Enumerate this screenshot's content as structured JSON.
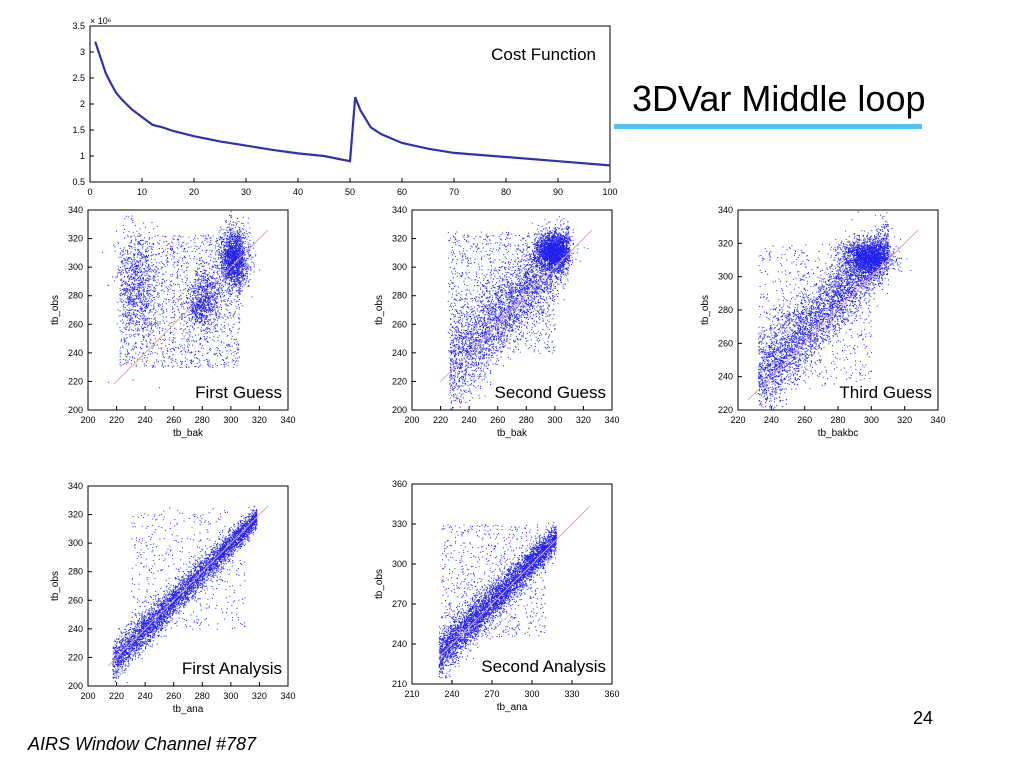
{
  "slide": {
    "title": "3DVar Middle loop",
    "footer": "AIRS Window Channel #787",
    "page_number": "24",
    "accent_color": "#4fc3f7"
  },
  "chart_data": [
    {
      "type": "line",
      "title": "Cost Function",
      "scale_label": "× 10⁶",
      "xlabel": "",
      "ylabel": "",
      "xlim": [
        0,
        100
      ],
      "ylim": [
        0.5,
        3.5
      ],
      "xticks": [
        0,
        10,
        20,
        30,
        40,
        50,
        60,
        70,
        80,
        90,
        100
      ],
      "yticks": [
        0.5,
        1,
        1.5,
        2,
        2.5,
        3,
        3.5
      ],
      "color": "#3030b0",
      "x": [
        1,
        2,
        3,
        4,
        5,
        6,
        7,
        8,
        10,
        12,
        14,
        16,
        20,
        25,
        30,
        35,
        40,
        45,
        50,
        51,
        52,
        54,
        56,
        60,
        65,
        70,
        80,
        90,
        100
      ],
      "y": [
        3.2,
        2.9,
        2.6,
        2.4,
        2.22,
        2.1,
        2.0,
        1.9,
        1.75,
        1.6,
        1.55,
        1.48,
        1.38,
        1.28,
        1.2,
        1.12,
        1.05,
        1.0,
        0.9,
        2.13,
        1.88,
        1.55,
        1.42,
        1.25,
        1.14,
        1.06,
        0.98,
        0.9,
        0.82
      ]
    },
    {
      "type": "scatter",
      "title": "First Guess",
      "xlabel": "tb_bak",
      "ylabel": "tb_obs",
      "xlim": [
        200,
        340
      ],
      "ylim": [
        200,
        340
      ],
      "xticks": [
        200,
        220,
        240,
        260,
        280,
        300,
        320,
        340
      ],
      "yticks": [
        200,
        220,
        240,
        260,
        280,
        300,
        320,
        340
      ],
      "point_color": "#2020ee",
      "diag_color": "#f4a0a0",
      "diag": [
        [
          218,
          218
        ],
        [
          326,
          326
        ]
      ],
      "clusters": [
        {
          "n": 1500,
          "type": "box",
          "x": [
            222,
            306
          ],
          "y": [
            230,
            323
          ]
        },
        {
          "n": 1700,
          "type": "gauss",
          "cx": 302,
          "cy": 306,
          "sx": 5,
          "sy": 11
        },
        {
          "n": 800,
          "type": "gauss",
          "cx": 234,
          "cy": 286,
          "sx": 7,
          "sy": 18
        },
        {
          "n": 400,
          "type": "gauss",
          "cx": 283,
          "cy": 282,
          "sx": 5,
          "sy": 10
        },
        {
          "n": 400,
          "type": "gauss",
          "cx": 277,
          "cy": 272,
          "sx": 5,
          "sy": 7
        }
      ]
    },
    {
      "type": "scatter",
      "title": "Second Guess",
      "xlabel": "tb_bak",
      "ylabel": "tb_obs",
      "xlim": [
        200,
        340
      ],
      "ylim": [
        200,
        340
      ],
      "xticks": [
        200,
        220,
        240,
        260,
        280,
        300,
        320,
        340
      ],
      "yticks": [
        200,
        220,
        240,
        260,
        280,
        300,
        320,
        340
      ],
      "point_color": "#2020ee",
      "diag_color": "#f4a0a0",
      "diag": [
        [
          220,
          220
        ],
        [
          326,
          326
        ]
      ],
      "clusters": [
        {
          "n": 3200,
          "type": "diag",
          "lo": 226,
          "hi": 310,
          "bias": 4,
          "spread": 10,
          "skew": 8
        },
        {
          "n": 1800,
          "type": "gauss",
          "cx": 298,
          "cy": 312,
          "sx": 6,
          "sy": 6
        },
        {
          "n": 1000,
          "type": "box",
          "x": [
            225,
            300
          ],
          "y": [
            240,
            325
          ]
        }
      ]
    },
    {
      "type": "scatter",
      "title": "Third Guess",
      "xlabel": "tb_bakbc",
      "ylabel": "tb_obs",
      "xlim": [
        220,
        340
      ],
      "ylim": [
        220,
        340
      ],
      "xticks": [
        220,
        240,
        260,
        280,
        300,
        320,
        340
      ],
      "yticks": [
        220,
        240,
        260,
        280,
        300,
        320,
        340
      ],
      "point_color": "#2020ee",
      "diag_color": "#f4a0a0",
      "diag": [
        [
          226,
          226
        ],
        [
          328,
          328
        ]
      ],
      "clusters": [
        {
          "n": 3800,
          "type": "diag",
          "lo": 232,
          "hi": 310,
          "bias": 8,
          "spread": 9,
          "skew": 5
        },
        {
          "n": 1800,
          "type": "gauss",
          "cx": 298,
          "cy": 312,
          "sx": 7,
          "sy": 5
        },
        {
          "n": 600,
          "type": "box",
          "x": [
            232,
            300
          ],
          "y": [
            235,
            320
          ]
        }
      ]
    },
    {
      "type": "scatter",
      "title": "First Analysis",
      "xlabel": "tb_ana",
      "ylabel": "tb_obs",
      "xlim": [
        200,
        340
      ],
      "ylim": [
        200,
        340
      ],
      "xticks": [
        200,
        220,
        240,
        260,
        280,
        300,
        320,
        340
      ],
      "yticks": [
        200,
        220,
        240,
        260,
        280,
        300,
        320,
        340
      ],
      "point_color": "#2020ee",
      "diag_color": "#f4a0a0",
      "diag": [
        [
          214,
          214
        ],
        [
          326,
          326
        ]
      ],
      "clusters": [
        {
          "n": 4500,
          "type": "diag",
          "lo": 217,
          "hi": 318,
          "bias": 0,
          "spread": 4,
          "skew": 3
        },
        {
          "n": 500,
          "type": "box",
          "x": [
            230,
            310
          ],
          "y": [
            240,
            325
          ]
        }
      ]
    },
    {
      "type": "scatter",
      "title": "Second Analysis",
      "xlabel": "tb_ana",
      "ylabel": "tb_obs",
      "xlim": [
        210,
        360
      ],
      "ylim": [
        210,
        360
      ],
      "xticks": [
        210,
        240,
        270,
        300,
        330,
        360
      ],
      "yticks": [
        210,
        240,
        270,
        300,
        330,
        360
      ],
      "point_color": "#2020ee",
      "diag_color": "#f4a0a0",
      "diag": [
        [
          230,
          230
        ],
        [
          343,
          343
        ]
      ],
      "clusters": [
        {
          "n": 4500,
          "type": "diag",
          "lo": 230,
          "hi": 318,
          "bias": 2,
          "spread": 5,
          "skew": 4
        },
        {
          "n": 700,
          "type": "box",
          "x": [
            232,
            310
          ],
          "y": [
            245,
            330
          ]
        }
      ]
    }
  ]
}
